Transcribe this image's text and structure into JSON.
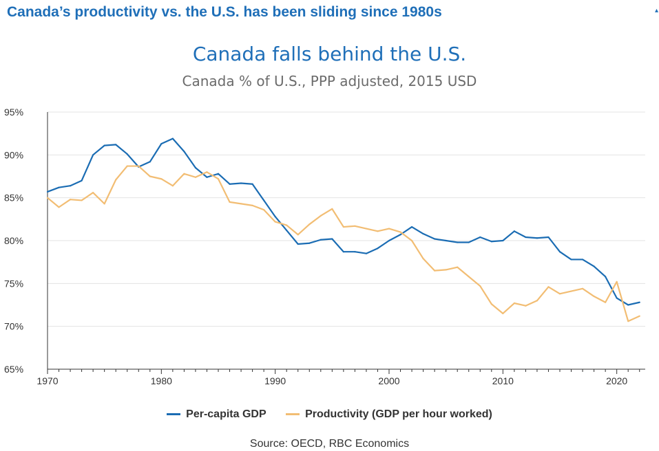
{
  "banner_title": "Canada’s productivity vs. the U.S. has been sliding since 1980s",
  "source": "Source: OECD, RBC Economics",
  "colors": {
    "banner": "#1f6fb8",
    "per_capita": "#1a6cb3",
    "productivity": "#f2bd73",
    "grid": "#e3e3e3",
    "axis": "#333333"
  },
  "chart_data": {
    "type": "line",
    "title": "Canada falls behind the U.S.",
    "subtitle": "Canada % of U.S., PPP adjusted, 2015 USD",
    "xlabel": "",
    "ylabel": "",
    "xlim": [
      1970,
      2022.5
    ],
    "ylim": [
      65,
      95
    ],
    "x_ticks": [
      1970,
      1980,
      1990,
      2000,
      2010,
      2020
    ],
    "y_ticks": [
      65,
      70,
      75,
      80,
      85,
      90,
      95
    ],
    "y_tick_labels": [
      "65%",
      "70%",
      "75%",
      "80%",
      "85%",
      "90%",
      "95%"
    ],
    "grid": "horizontal",
    "legend_position": "bottom",
    "series": [
      {
        "name": "Per-capita GDP",
        "color": "#1a6cb3",
        "x": [
          1970,
          1971,
          1972,
          1973,
          1974,
          1975,
          1976,
          1977,
          1978,
          1979,
          1980,
          1981,
          1982,
          1983,
          1984,
          1985,
          1986,
          1987,
          1988,
          1989,
          1990,
          1991,
          1992,
          1993,
          1994,
          1995,
          1996,
          1997,
          1998,
          1999,
          2000,
          2001,
          2002,
          2003,
          2004,
          2005,
          2006,
          2007,
          2008,
          2009,
          2010,
          2011,
          2012,
          2013,
          2014,
          2015,
          2016,
          2017,
          2018,
          2019,
          2020,
          2021,
          2022
        ],
        "values": [
          85.7,
          86.2,
          86.4,
          87.0,
          90.0,
          91.1,
          91.2,
          90.1,
          88.6,
          89.2,
          91.3,
          91.9,
          90.4,
          88.5,
          87.4,
          87.8,
          86.6,
          86.7,
          86.6,
          84.7,
          82.8,
          81.2,
          79.6,
          79.7,
          80.1,
          80.2,
          78.7,
          78.7,
          78.5,
          79.1,
          80.0,
          80.7,
          81.6,
          80.8,
          80.2,
          80.0,
          79.8,
          79.8,
          80.4,
          79.9,
          80.0,
          81.1,
          80.4,
          80.3,
          80.4,
          78.7,
          77.8,
          77.8,
          77.0,
          75.8,
          73.3,
          72.5,
          72.8
        ]
      },
      {
        "name": "Productivity (GDP per hour worked)",
        "color": "#f2bd73",
        "x": [
          1970,
          1971,
          1972,
          1973,
          1974,
          1975,
          1976,
          1977,
          1978,
          1979,
          1980,
          1981,
          1982,
          1983,
          1984,
          1985,
          1986,
          1987,
          1988,
          1989,
          1990,
          1991,
          1992,
          1993,
          1994,
          1995,
          1996,
          1997,
          1998,
          1999,
          2000,
          2001,
          2002,
          2003,
          2004,
          2005,
          2006,
          2007,
          2008,
          2009,
          2010,
          2011,
          2012,
          2013,
          2014,
          2015,
          2016,
          2017,
          2018,
          2019,
          2020,
          2021,
          2022
        ],
        "values": [
          85.0,
          83.9,
          84.8,
          84.7,
          85.6,
          84.3,
          87.1,
          88.7,
          88.7,
          87.5,
          87.2,
          86.4,
          87.8,
          87.4,
          88.0,
          87.2,
          84.5,
          84.3,
          84.1,
          83.6,
          82.2,
          81.8,
          80.7,
          81.9,
          82.9,
          83.7,
          81.6,
          81.7,
          81.4,
          81.1,
          81.4,
          81.0,
          80.0,
          77.9,
          76.5,
          76.6,
          76.9,
          75.8,
          74.7,
          72.6,
          71.5,
          72.7,
          72.4,
          73.0,
          74.6,
          73.8,
          74.1,
          74.4,
          73.5,
          72.8,
          75.2,
          70.6,
          71.2
        ]
      }
    ]
  }
}
